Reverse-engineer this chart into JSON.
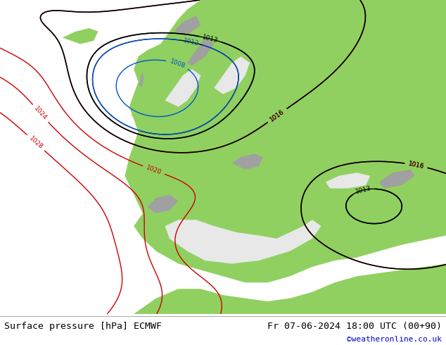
{
  "title_left": "Surface pressure [hPa] ECMWF",
  "title_right": "Fr 07-06-2024 18:00 UTC (00+90)",
  "copyright": "©weatheronline.co.uk",
  "sea_color": "#e8e8e8",
  "land_color": "#90d060",
  "mountain_color": "#a0a0a0",
  "footer_bg": "#ffffff",
  "footer_text_color": "#000000",
  "footer_link_color": "#0000cc",
  "isobar_red_color": "#cc0000",
  "isobar_black_color": "#000000",
  "isobar_blue_color": "#0055cc",
  "figsize": [
    6.34,
    4.9
  ],
  "dpi": 100
}
